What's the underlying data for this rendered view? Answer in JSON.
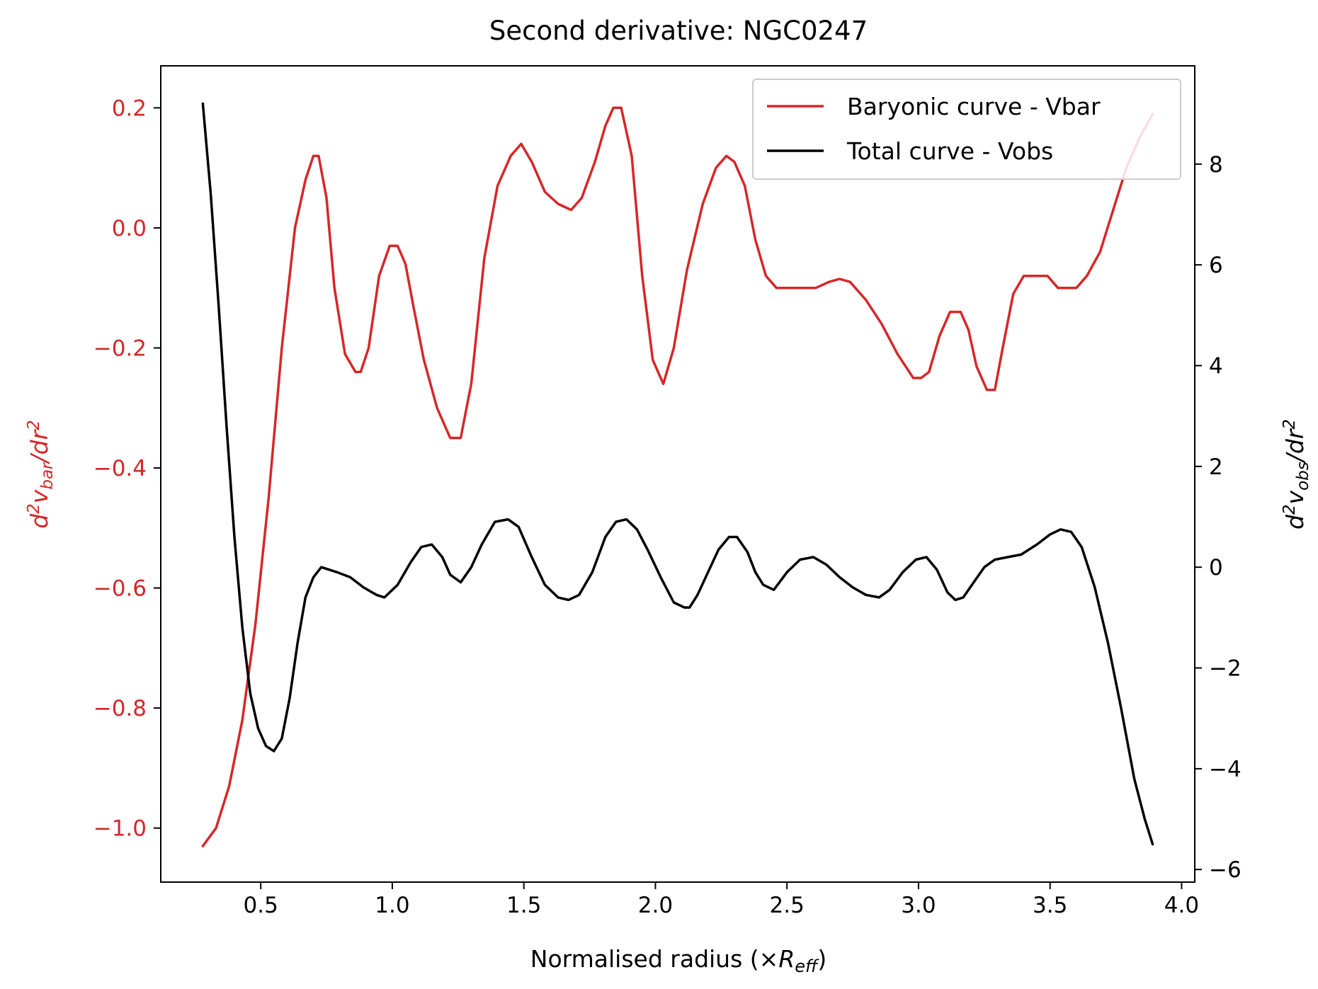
{
  "chart_data": {
    "type": "line",
    "title": "Second derivative: NGC0247",
    "xlabel": "Normalised radius (×R_eff)",
    "xlabel_parts": [
      "Normalised radius (×",
      "R",
      "eff",
      ")"
    ],
    "ylabel_left": "d²v_bar/dr²",
    "ylabel_left_parts": [
      "d",
      "2",
      "v",
      "bar",
      "/dr",
      "2"
    ],
    "ylabel_right": "d²v_obs/dr²",
    "ylabel_right_parts": [
      "d",
      "2",
      "v",
      "obs",
      "/dr",
      "2"
    ],
    "xlim": [
      0.12,
      4.05
    ],
    "ylim_left": [
      -1.09,
      0.27
    ],
    "ylim_right": [
      -6.25,
      9.95
    ],
    "x_ticks": [
      "0.5",
      "1.0",
      "1.5",
      "2.0",
      "2.5",
      "3.0",
      "3.5",
      "4.0"
    ],
    "y_ticks_left": [
      "0.2",
      "0.0",
      "−0.2",
      "−0.4",
      "−0.6",
      "−0.8",
      "−1.0"
    ],
    "y_ticks_right": [
      "8",
      "6",
      "4",
      "2",
      "0",
      "−2",
      "−4",
      "−6"
    ],
    "grid": false,
    "legend_position": "top-right",
    "colors": {
      "vbar": "#d62728",
      "vobs": "#000000",
      "left_axis": "#d62728",
      "right_axis": "#000000"
    },
    "series": [
      {
        "name": "Baryonic curve - Vbar",
        "axis": "left",
        "color": "#d62728",
        "x": [
          0.28,
          0.33,
          0.38,
          0.43,
          0.48,
          0.53,
          0.58,
          0.63,
          0.67,
          0.7,
          0.72,
          0.75,
          0.78,
          0.82,
          0.86,
          0.88,
          0.91,
          0.95,
          0.99,
          1.02,
          1.05,
          1.08,
          1.12,
          1.17,
          1.22,
          1.26,
          1.3,
          1.35,
          1.4,
          1.45,
          1.49,
          1.53,
          1.58,
          1.63,
          1.68,
          1.72,
          1.77,
          1.81,
          1.84,
          1.87,
          1.91,
          1.95,
          1.99,
          2.03,
          2.07,
          2.12,
          2.18,
          2.23,
          2.27,
          2.3,
          2.34,
          2.38,
          2.42,
          2.46,
          2.5,
          2.55,
          2.61,
          2.66,
          2.7,
          2.74,
          2.8,
          2.86,
          2.92,
          2.98,
          3.01,
          3.04,
          3.08,
          3.12,
          3.16,
          3.19,
          3.22,
          3.26,
          3.29,
          3.32,
          3.36,
          3.4,
          3.45,
          3.49,
          3.53,
          3.56,
          3.6,
          3.64,
          3.69,
          3.74,
          3.79,
          3.84,
          3.89
        ],
        "values": [
          -1.03,
          -1.0,
          -0.93,
          -0.82,
          -0.66,
          -0.45,
          -0.2,
          0.0,
          0.08,
          0.12,
          0.12,
          0.05,
          -0.1,
          -0.21,
          -0.24,
          -0.24,
          -0.2,
          -0.08,
          -0.03,
          -0.03,
          -0.06,
          -0.13,
          -0.22,
          -0.3,
          -0.35,
          -0.35,
          -0.26,
          -0.05,
          0.07,
          0.12,
          0.14,
          0.11,
          0.06,
          0.04,
          0.03,
          0.05,
          0.11,
          0.17,
          0.2,
          0.2,
          0.12,
          -0.08,
          -0.22,
          -0.26,
          -0.2,
          -0.07,
          0.04,
          0.1,
          0.12,
          0.11,
          0.07,
          -0.02,
          -0.08,
          -0.1,
          -0.1,
          -0.1,
          -0.1,
          -0.09,
          -0.085,
          -0.09,
          -0.12,
          -0.16,
          -0.21,
          -0.25,
          -0.25,
          -0.24,
          -0.18,
          -0.14,
          -0.14,
          -0.17,
          -0.23,
          -0.27,
          -0.27,
          -0.2,
          -0.11,
          -0.08,
          -0.08,
          -0.08,
          -0.1,
          -0.1,
          -0.1,
          -0.08,
          -0.04,
          0.03,
          0.1,
          0.15,
          0.19
        ]
      },
      {
        "name": "Total curve - Vobs",
        "axis": "right",
        "color": "#000000",
        "x": [
          0.28,
          0.31,
          0.34,
          0.37,
          0.4,
          0.43,
          0.46,
          0.49,
          0.52,
          0.55,
          0.58,
          0.61,
          0.64,
          0.67,
          0.7,
          0.73,
          0.76,
          0.79,
          0.84,
          0.89,
          0.94,
          0.97,
          1.02,
          1.07,
          1.11,
          1.15,
          1.19,
          1.22,
          1.26,
          1.3,
          1.34,
          1.39,
          1.44,
          1.48,
          1.53,
          1.58,
          1.63,
          1.67,
          1.71,
          1.76,
          1.81,
          1.85,
          1.89,
          1.93,
          1.97,
          2.02,
          2.07,
          2.11,
          2.13,
          2.16,
          2.2,
          2.24,
          2.28,
          2.31,
          2.35,
          2.38,
          2.41,
          2.45,
          2.5,
          2.55,
          2.6,
          2.65,
          2.7,
          2.75,
          2.8,
          2.85,
          2.89,
          2.94,
          2.99,
          3.03,
          3.07,
          3.11,
          3.14,
          3.17,
          3.21,
          3.25,
          3.29,
          3.34,
          3.39,
          3.45,
          3.5,
          3.54,
          3.58,
          3.62,
          3.67,
          3.72,
          3.77,
          3.82,
          3.86,
          3.89
        ],
        "values": [
          9.2,
          7.4,
          5.2,
          2.8,
          0.6,
          -1.2,
          -2.5,
          -3.2,
          -3.55,
          -3.65,
          -3.4,
          -2.6,
          -1.5,
          -0.6,
          -0.2,
          0.0,
          -0.05,
          -0.1,
          -0.2,
          -0.4,
          -0.55,
          -0.6,
          -0.35,
          0.1,
          0.4,
          0.45,
          0.2,
          -0.15,
          -0.3,
          0.0,
          0.45,
          0.9,
          0.95,
          0.8,
          0.2,
          -0.35,
          -0.6,
          -0.65,
          -0.55,
          -0.1,
          0.6,
          0.9,
          0.95,
          0.75,
          0.35,
          -0.2,
          -0.7,
          -0.8,
          -0.8,
          -0.55,
          -0.1,
          0.35,
          0.6,
          0.6,
          0.3,
          -0.1,
          -0.35,
          -0.45,
          -0.1,
          0.15,
          0.2,
          0.05,
          -0.2,
          -0.4,
          -0.55,
          -0.6,
          -0.45,
          -0.1,
          0.15,
          0.2,
          -0.05,
          -0.5,
          -0.65,
          -0.6,
          -0.3,
          0.0,
          0.15,
          0.2,
          0.25,
          0.45,
          0.65,
          0.75,
          0.7,
          0.4,
          -0.4,
          -1.5,
          -2.8,
          -4.2,
          -5.0,
          -5.5
        ]
      }
    ]
  }
}
